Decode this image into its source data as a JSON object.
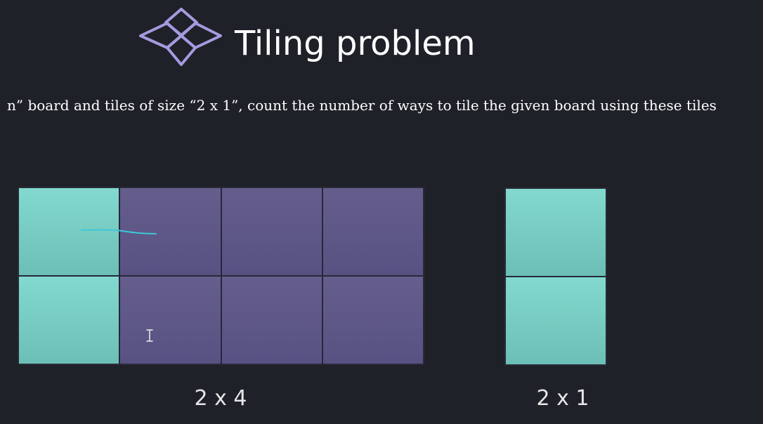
{
  "header": {
    "logo_icon": "stacked-diamonds-icon",
    "title": "Tiling problem"
  },
  "statement": {
    "text": "n” board and tiles of size “2 x 1”, count the number of ways to tile the given board using these tiles"
  },
  "boards": [
    {
      "label": "2 x 4",
      "rows": 2,
      "cols": 4,
      "cells": [
        [
          "teal",
          "purple",
          "purple",
          "purple"
        ],
        [
          "teal",
          "purple",
          "purple",
          "purple"
        ]
      ]
    },
    {
      "label": "2 x 1",
      "rows": 2,
      "cols": 1,
      "cells": [
        [
          "teal"
        ],
        [
          "teal"
        ]
      ]
    }
  ],
  "colors": {
    "background": "#1e2128",
    "teal": "#7ad3c9",
    "purple": "#605a89",
    "logo": "#a59be0",
    "annotation_stroke": "#3fc7d9"
  }
}
